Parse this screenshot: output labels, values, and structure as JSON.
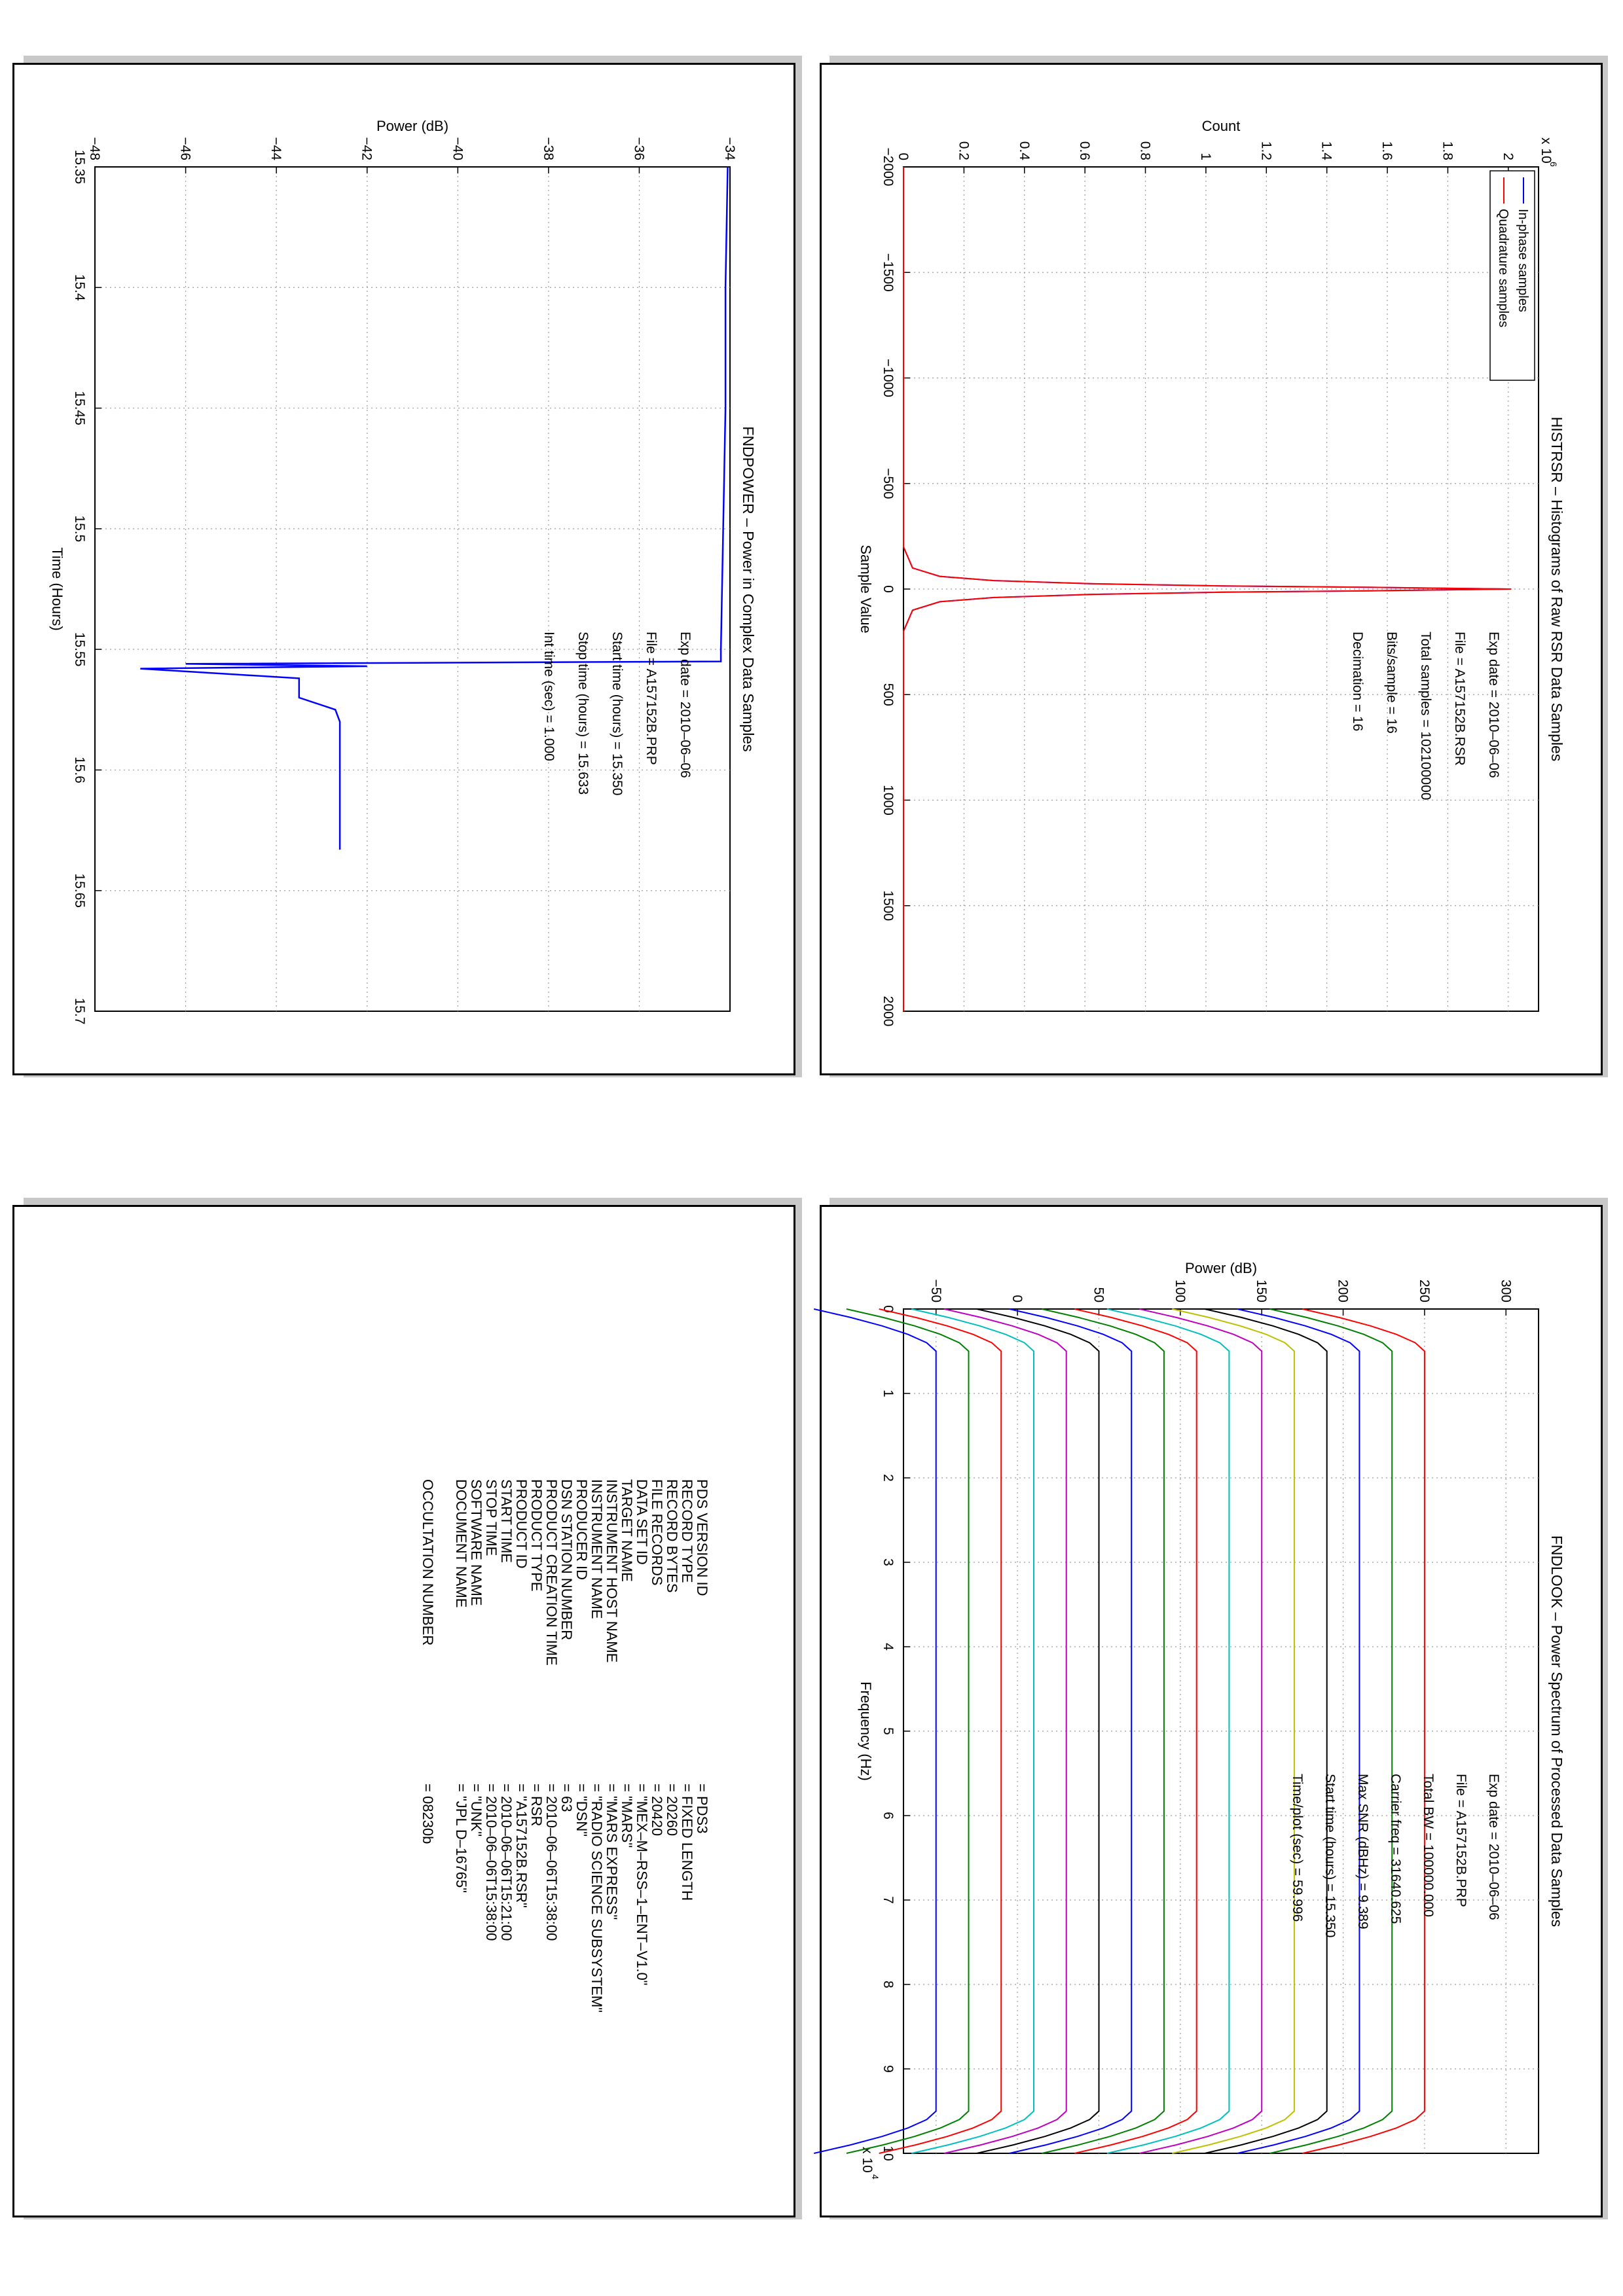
{
  "colors": {
    "blue": "#0000ff",
    "red": "#ff0000",
    "grid": "#9a9a9a"
  },
  "chart_data": [
    {
      "type": "line",
      "title": "HISTRSR – Histograms of Raw RSR Data Samples",
      "xlabel": "Sample Value",
      "ylabel": "Count",
      "xlim": [
        -2000,
        2000
      ],
      "ylim": [
        0,
        2.1
      ],
      "y_exponent": "x 10",
      "y_exponent_power": "6",
      "xticks": [
        "−2000",
        "−1500",
        "−1000",
        "−500",
        "0",
        "500",
        "1000",
        "1500",
        "2000"
      ],
      "yticks": [
        "0",
        "0.2",
        "0.4",
        "0.6",
        "0.8",
        "1",
        "1.2",
        "1.4",
        "1.6",
        "1.8",
        "2"
      ],
      "grid": true,
      "legend_position": "top-left",
      "series": [
        {
          "name": "In-phase samples",
          "color": "#0000ff",
          "x": [
            -2000,
            -200,
            -100,
            -60,
            -40,
            -25,
            -15,
            -8,
            0,
            8,
            15,
            25,
            40,
            60,
            100,
            200,
            2000
          ],
          "y": [
            0,
            0,
            0.03,
            0.12,
            0.3,
            0.62,
            1.05,
            1.55,
            2.0,
            1.55,
            1.05,
            0.62,
            0.3,
            0.12,
            0.03,
            0,
            0
          ]
        },
        {
          "name": "Quadrature samples",
          "color": "#ff0000",
          "x": [
            -2000,
            -200,
            -100,
            -60,
            -40,
            -25,
            -15,
            -8,
            0,
            8,
            15,
            25,
            40,
            60,
            100,
            200,
            2000
          ],
          "y": [
            0,
            0,
            0.03,
            0.12,
            0.3,
            0.63,
            1.06,
            1.56,
            2.01,
            1.56,
            1.06,
            0.63,
            0.3,
            0.12,
            0.03,
            0,
            0
          ]
        }
      ],
      "annotation": {
        "exp_date": "Exp date = 2010–06–06",
        "file": "File = A157152B.RSR",
        "total_samples": "Total samples = 102100000",
        "bits": "Bits/sample    =         16",
        "decimation": "Decimation    =         16"
      }
    },
    {
      "type": "line",
      "title": "FNDPOWER – Power in Complex Data Samples",
      "xlabel": "Time (Hours)",
      "ylabel": "Power (dB)",
      "xlim": [
        15.35,
        15.7
      ],
      "ylim": [
        -48,
        -34
      ],
      "xticks": [
        "15.35",
        "15.4",
        "15.45",
        "15.5",
        "15.55",
        "15.6",
        "15.65",
        "15.7"
      ],
      "yticks": [
        "−48",
        "−46",
        "−44",
        "−42",
        "−40",
        "−38",
        "−36",
        "−34"
      ],
      "grid": true,
      "series": [
        {
          "color": "#0000ff",
          "x": [
            15.35,
            15.4,
            15.45,
            15.5,
            15.55,
            15.555,
            15.556,
            15.557,
            15.558,
            15.562,
            15.57,
            15.575,
            15.58,
            15.6,
            15.62,
            15.633
          ],
          "y": [
            -34.05,
            -34.1,
            -34.1,
            -34.15,
            -34.2,
            -34.2,
            -46.0,
            -42.0,
            -47.0,
            -43.5,
            -43.5,
            -42.7,
            -42.6,
            -42.6,
            -42.6,
            -42.6
          ]
        }
      ],
      "annotation": {
        "exp_date": "Exp date = 2010–06–06",
        "file": "File = A157152B.PRP",
        "start": "Start time (hours) = 15.350",
        "stop": "Stop time (hours)  = 15.633",
        "int_time": "Int time (sec) =      1.000"
      }
    },
    {
      "type": "line",
      "title": "FNDLOOK – Power Spectrum of Processed Data Samples",
      "xlabel": "Frequency (Hz)",
      "ylabel": "Power (dB)",
      "xlim": [
        0,
        10
      ],
      "x_exponent": "x 10",
      "x_exponent_power": "4",
      "ylim": [
        -70,
        320
      ],
      "xticks": [
        "0",
        "1",
        "2",
        "3",
        "4",
        "5",
        "6",
        "7",
        "8",
        "9",
        "10"
      ],
      "yticks": [
        "−50",
        "0",
        "50",
        "100",
        "150",
        "200",
        "250",
        "300"
      ],
      "grid": true,
      "series_levels": [
        -50,
        -30,
        -10,
        10,
        30,
        50,
        70,
        90,
        110,
        130,
        150,
        170,
        190,
        210,
        230,
        250
      ],
      "series_colors": [
        "#0000ff",
        "#008000",
        "#ff0000",
        "#00bfbf",
        "#bf00bf",
        "#000000",
        "#0000ff",
        "#008000",
        "#ff0000",
        "#00bfbf",
        "#bf00bf",
        "#bfbf00",
        "#000000",
        "#0000ff",
        "#008000",
        "#ff0000"
      ],
      "annotation": {
        "exp_date": "Exp date = 2010–06–06",
        "file": "File = A157152B.PRP",
        "total_bw": "Total BW =      100000.000",
        "carrier": "Carrier freq =   31640.625",
        "max_snr": "Max SNR (dBHz) =    9.389",
        "start": "Start time (hours) =   15.350",
        "time_plot": "Time/plot (sec) =    59.996"
      }
    }
  ],
  "label_block": {
    "rows": [
      {
        "key": "PDS VERSION ID",
        "value": "= PDS3"
      },
      {
        "key": "RECORD TYPE",
        "value": "= FIXED LENGTH"
      },
      {
        "key": "RECORD BYTES",
        "value": "= 20260"
      },
      {
        "key": "FILE RECORDS",
        "value": "= 20420"
      },
      {
        "key": "DATA SET ID",
        "value": "= \"MEX–M–RSS–1–ENT–V1.0\""
      },
      {
        "key": "TARGET NAME",
        "value": "= \"MARS\""
      },
      {
        "key": "INSTRUMENT HOST NAME",
        "value": "= \"MARS EXPRESS\""
      },
      {
        "key": "INSTRUMENT NAME",
        "value": "= \"RADIO SCIENCE SUBSYSTEM\""
      },
      {
        "key": "PRODUCER ID",
        "value": "= \"DSN\""
      },
      {
        "key": "DSN STATION NUMBER",
        "value": "= 63"
      },
      {
        "key": "PRODUCT CREATION TIME",
        "value": "= 2010–06–06T15:38:00"
      },
      {
        "key": "PRODUCT TYPE",
        "value": "= RSR"
      },
      {
        "key": "PRODUCT ID",
        "value": "= \"A157152B.RSR\""
      },
      {
        "key": "START TIME",
        "value": "= 2010–06–06T15:21:00"
      },
      {
        "key": "STOP TIME",
        "value": "= 2010–06–06T15:38:00"
      },
      {
        "key": "SOFTWARE NAME",
        "value": "= \"UNK\""
      },
      {
        "key": "DOCUMENT NAME",
        "value": "= \"JPL D–16765\""
      }
    ],
    "occultation": {
      "key": "OCCULTATION NUMBER",
      "value": "= 08230b"
    }
  }
}
